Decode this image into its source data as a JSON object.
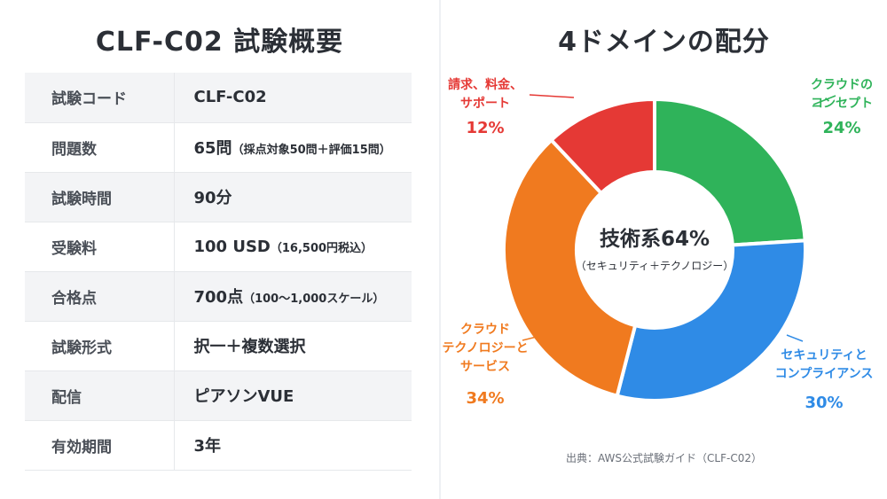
{
  "left": {
    "title": "CLF-C02 試験概要",
    "rows": [
      {
        "key": "試験コード",
        "value": "CLF-C02",
        "note": ""
      },
      {
        "key": "問題数",
        "value": "65問",
        "note": "（採点対象50問＋評価15問）"
      },
      {
        "key": "試験時間",
        "value": "90分",
        "note": ""
      },
      {
        "key": "受験料",
        "value": "100 USD",
        "note": "（16,500円税込）"
      },
      {
        "key": "合格点",
        "value": "700点",
        "note": "（100～1,000スケール）"
      },
      {
        "key": "試験形式",
        "value": "択一＋複数選択",
        "note": ""
      },
      {
        "key": "配信",
        "value": "ピアソンVUE",
        "note": ""
      },
      {
        "key": "有効期間",
        "value": "3年",
        "note": ""
      }
    ]
  },
  "right": {
    "title": "4ドメインの配分",
    "center_main": "技術系64%",
    "center_sub": "（セキュリティ＋テクノロジー）",
    "source": "出典：AWS公式試験ガイド（CLF-C02）"
  },
  "chart_data": {
    "type": "pie",
    "title": "4ドメインの配分",
    "series": [
      {
        "name": "クラウドのコンセプト",
        "label_lines": [
          "クラウドの",
          "コンセプト"
        ],
        "value": 24,
        "value_label": "24%",
        "color": "#2fb35a"
      },
      {
        "name": "セキュリティとコンプライアンス",
        "label_lines": [
          "セキュリティと",
          "コンプライアンス"
        ],
        "value": 30,
        "value_label": "30%",
        "color": "#2f8be6"
      },
      {
        "name": "クラウドテクノロジーとサービス",
        "label_lines": [
          "クラウド",
          "テクノロジーと",
          "サービス"
        ],
        "value": 34,
        "value_label": "34%",
        "color": "#f07a1f"
      },
      {
        "name": "請求、料金、サポート",
        "label_lines": [
          "請求、料金、",
          "サポート"
        ],
        "value": 12,
        "value_label": "12%",
        "color": "#e53935"
      }
    ]
  }
}
